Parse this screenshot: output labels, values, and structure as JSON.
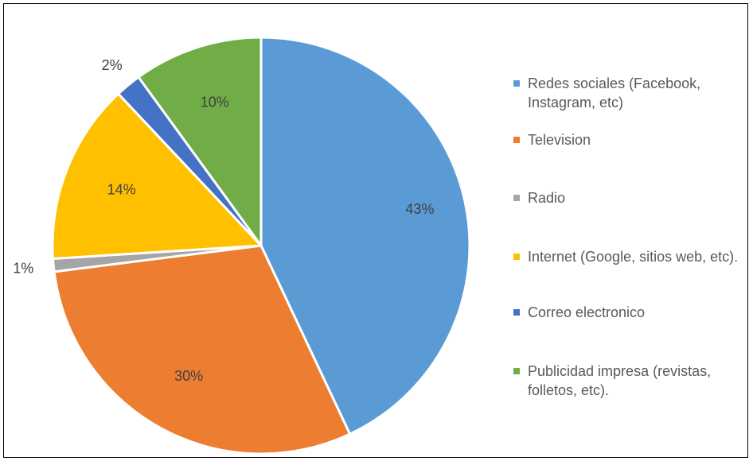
{
  "chart_data": {
    "type": "pie",
    "series": [
      {
        "values": [
          43,
          30,
          1,
          14,
          2,
          10
        ],
        "labels": [
          "43%",
          "30%",
          "1%",
          "14%",
          "2%",
          "10%"
        ]
      }
    ],
    "categories": [
      "Redes sociales (Facebook, Instagram, etc)",
      "Television",
      "Radio",
      "Internet (Google, sitios web, etc).",
      "Correo electronico",
      "Publicidad impresa (revistas, folletos, etc)."
    ],
    "colors": [
      "#5B9BD5",
      "#ED7D31",
      "#A5A5A5",
      "#FFC000",
      "#4472C4",
      "#70AD47"
    ],
    "legend_position": "right",
    "start_angle": "12 o'clock",
    "direction": "clockwise"
  }
}
